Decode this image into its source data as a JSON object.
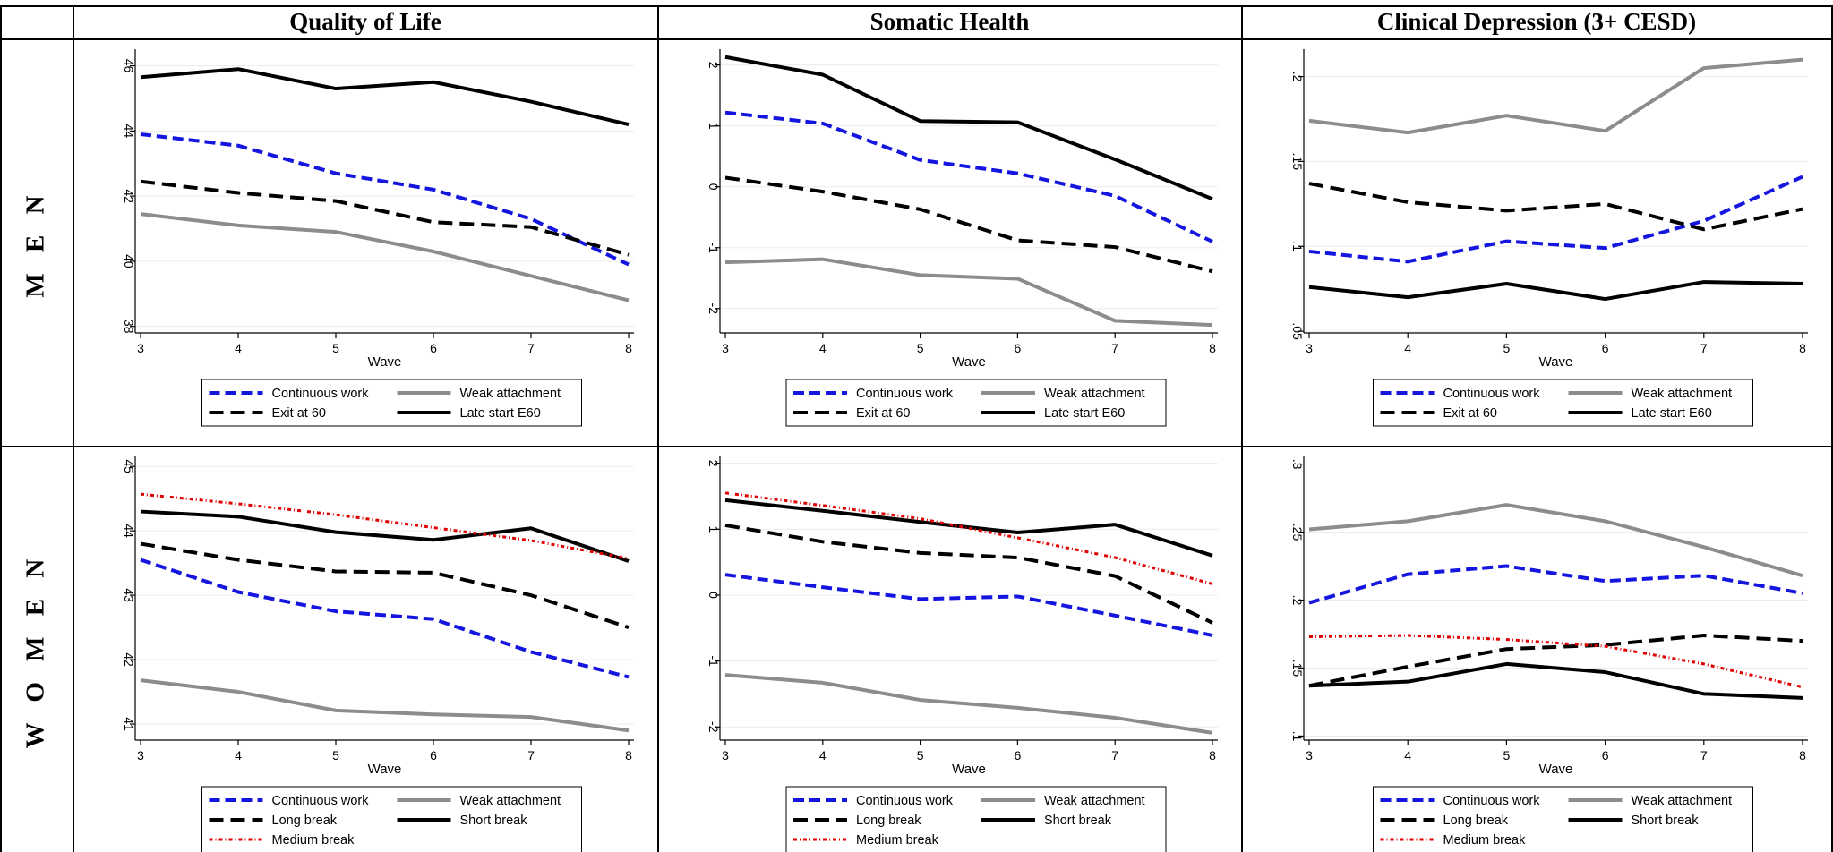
{
  "column_headers": [
    "Quality of Life",
    "Somatic Health",
    "Clinical Depression (3+ CESD)"
  ],
  "row_headers": [
    "M E N",
    "W O M E N"
  ],
  "styles": {
    "Continuous work": {
      "color": "#1515e0",
      "dash": "12,6",
      "width": 4
    },
    "Weak attachment": {
      "color": "#8c8c8c",
      "dash": "",
      "width": 4
    },
    "Exit at 60": {
      "color": "#000000",
      "dash": "16,8",
      "width": 4
    },
    "Late start E60": {
      "color": "#000000",
      "dash": "",
      "width": 4
    },
    "Long break": {
      "color": "#000000",
      "dash": "16,8",
      "width": 4
    },
    "Short break": {
      "color": "#000000",
      "dash": "",
      "width": 4
    },
    "Medium break": {
      "color": "#e00000",
      "dash": "4,3,1,3",
      "width": 3
    }
  },
  "chart_data": [
    {
      "type": "line",
      "title": "Quality of Life",
      "row": "M E N",
      "x": [
        3,
        4,
        5,
        6,
        7,
        8
      ],
      "xlabel": "Wave",
      "xticks": [
        "3",
        "4",
        "5",
        "6",
        "7",
        "8"
      ],
      "ylim": [
        37.8,
        46.4
      ],
      "yticks": [
        38,
        40,
        42,
        44,
        46
      ],
      "ytick_labels": [
        "38",
        "40",
        "42",
        "44",
        "46"
      ],
      "legend": [
        "Continuous work",
        "Weak attachment",
        "Exit at 60",
        "Late start E60"
      ],
      "series": [
        {
          "name": "Continuous work",
          "values": [
            43.9,
            43.55,
            42.7,
            42.2,
            41.3,
            39.9
          ]
        },
        {
          "name": "Weak attachment",
          "values": [
            41.45,
            41.1,
            40.9,
            40.3,
            39.55,
            38.8
          ]
        },
        {
          "name": "Exit at 60",
          "values": [
            42.45,
            42.1,
            41.85,
            41.2,
            41.05,
            40.2
          ]
        },
        {
          "name": "Late start E60",
          "values": [
            45.65,
            45.9,
            45.3,
            45.5,
            44.9,
            44.2
          ]
        }
      ]
    },
    {
      "type": "line",
      "title": "Somatic Health",
      "row": "M E N",
      "x": [
        3,
        4,
        5,
        6,
        7,
        8
      ],
      "xlabel": "Wave",
      "xticks": [
        "3",
        "4",
        "5",
        "6",
        "7",
        "8"
      ],
      "ylim": [
        -2.4,
        2.2
      ],
      "yticks": [
        -2,
        -1,
        0,
        1,
        2
      ],
      "ytick_labels": [
        "-2",
        "-1",
        "0",
        "1",
        "2"
      ],
      "legend": [
        "Continuous work",
        "Weak attachment",
        "Exit at 60",
        "Late start E60"
      ],
      "series": [
        {
          "name": "Continuous work",
          "values": [
            1.22,
            1.04,
            0.44,
            0.22,
            -0.15,
            -0.9
          ]
        },
        {
          "name": "Weak attachment",
          "values": [
            -1.24,
            -1.19,
            -1.45,
            -1.51,
            -2.2,
            -2.27
          ]
        },
        {
          "name": "Exit at 60",
          "values": [
            0.15,
            -0.08,
            -0.37,
            -0.88,
            -0.99,
            -1.39
          ]
        },
        {
          "name": "Late start E60",
          "values": [
            2.13,
            1.84,
            1.08,
            1.06,
            0.45,
            -0.2
          ]
        }
      ]
    },
    {
      "type": "line",
      "title": "Clinical Depression (3+ CESD)",
      "row": "M E N",
      "x": [
        3,
        4,
        5,
        6,
        7,
        8
      ],
      "xlabel": "Wave",
      "xticks": [
        "3",
        "4",
        "5",
        "6",
        "7",
        "8"
      ],
      "ylim": [
        0.049,
        0.214
      ],
      "yticks": [
        0.05,
        0.1,
        0.15,
        0.2
      ],
      "ytick_labels": [
        ".05",
        ".1",
        ".15",
        ".2"
      ],
      "legend": [
        "Continuous work",
        "Weak attachment",
        "Exit at 60",
        "Late start E60"
      ],
      "series": [
        {
          "name": "Continuous work",
          "values": [
            0.097,
            0.091,
            0.103,
            0.099,
            0.115,
            0.141
          ]
        },
        {
          "name": "Weak attachment",
          "values": [
            0.174,
            0.167,
            0.177,
            0.168,
            0.205,
            0.21
          ]
        },
        {
          "name": "Exit at 60",
          "values": [
            0.137,
            0.126,
            0.121,
            0.125,
            0.11,
            0.122
          ]
        },
        {
          "name": "Late start E60",
          "values": [
            0.076,
            0.07,
            0.078,
            0.069,
            0.079,
            0.078
          ]
        }
      ]
    },
    {
      "type": "line",
      "title": "Quality of Life",
      "row": "W O M E N",
      "x": [
        3,
        4,
        5,
        6,
        7,
        8
      ],
      "xlabel": "Wave",
      "xticks": [
        "3",
        "4",
        "5",
        "6",
        "7",
        "8"
      ],
      "ylim": [
        40.75,
        45.1
      ],
      "yticks": [
        41,
        42,
        43,
        44,
        45
      ],
      "ytick_labels": [
        "41",
        "42",
        "43",
        "44",
        "45"
      ],
      "legend": [
        "Continuous work",
        "Weak attachment",
        "Long break",
        "Short break",
        "Medium break"
      ],
      "series": [
        {
          "name": "Continuous work",
          "values": [
            43.55,
            43.05,
            42.75,
            42.63,
            42.12,
            41.73
          ]
        },
        {
          "name": "Weak attachment",
          "values": [
            41.68,
            41.5,
            41.21,
            41.15,
            41.11,
            40.9
          ]
        },
        {
          "name": "Long break",
          "values": [
            43.8,
            43.55,
            43.37,
            43.35,
            43.0,
            42.5
          ]
        },
        {
          "name": "Short break",
          "values": [
            44.3,
            44.22,
            43.98,
            43.86,
            44.04,
            43.53
          ]
        },
        {
          "name": "Medium break",
          "values": [
            44.57,
            44.42,
            44.25,
            44.05,
            43.85,
            43.57
          ]
        }
      ]
    },
    {
      "type": "line",
      "title": "Somatic Health",
      "row": "W O M E N",
      "x": [
        3,
        4,
        5,
        6,
        7,
        8
      ],
      "xlabel": "Wave",
      "xticks": [
        "3",
        "4",
        "5",
        "6",
        "7",
        "8"
      ],
      "ylim": [
        -2.2,
        2.05
      ],
      "yticks": [
        -2,
        -1,
        0,
        1,
        2
      ],
      "ytick_labels": [
        "-2",
        "-1",
        "0",
        "1",
        "2"
      ],
      "legend": [
        "Continuous work",
        "Weak attachment",
        "Long break",
        "Short break",
        "Medium break"
      ],
      "series": [
        {
          "name": "Continuous work",
          "values": [
            0.31,
            0.12,
            -0.06,
            -0.02,
            -0.31,
            -0.61
          ]
        },
        {
          "name": "Weak attachment",
          "values": [
            -1.21,
            -1.33,
            -1.59,
            -1.71,
            -1.86,
            -2.09
          ]
        },
        {
          "name": "Long break",
          "values": [
            1.06,
            0.81,
            0.64,
            0.57,
            0.29,
            -0.42
          ]
        },
        {
          "name": "Short break",
          "values": [
            1.44,
            1.28,
            1.11,
            0.95,
            1.07,
            0.6
          ]
        },
        {
          "name": "Medium break",
          "values": [
            1.55,
            1.36,
            1.16,
            0.87,
            0.57,
            0.17
          ]
        }
      ]
    },
    {
      "type": "line",
      "title": "Clinical Depression (3+ CESD)",
      "row": "W O M E N",
      "x": [
        3,
        4,
        5,
        6,
        7,
        8
      ],
      "xlabel": "Wave",
      "xticks": [
        "3",
        "4",
        "5",
        "6",
        "7",
        "8"
      ],
      "ylim": [
        0.097,
        0.303
      ],
      "yticks": [
        0.1,
        0.15,
        0.2,
        0.25,
        0.3
      ],
      "ytick_labels": [
        ".1",
        ".15",
        ".2",
        ".25",
        ".3"
      ],
      "legend": [
        "Continuous work",
        "Weak attachment",
        "Long break",
        "Short break",
        "Medium break"
      ],
      "series": [
        {
          "name": "Continuous work",
          "values": [
            0.198,
            0.219,
            0.225,
            0.214,
            0.218,
            0.205
          ]
        },
        {
          "name": "Weak attachment",
          "values": [
            0.252,
            0.258,
            0.27,
            0.258,
            0.239,
            0.218
          ]
        },
        {
          "name": "Long break",
          "values": [
            0.137,
            0.151,
            0.164,
            0.167,
            0.174,
            0.17
          ]
        },
        {
          "name": "Short break",
          "values": [
            0.137,
            0.14,
            0.153,
            0.147,
            0.131,
            0.128
          ]
        },
        {
          "name": "Medium break",
          "values": [
            0.173,
            0.174,
            0.171,
            0.166,
            0.153,
            0.136
          ]
        }
      ]
    }
  ]
}
